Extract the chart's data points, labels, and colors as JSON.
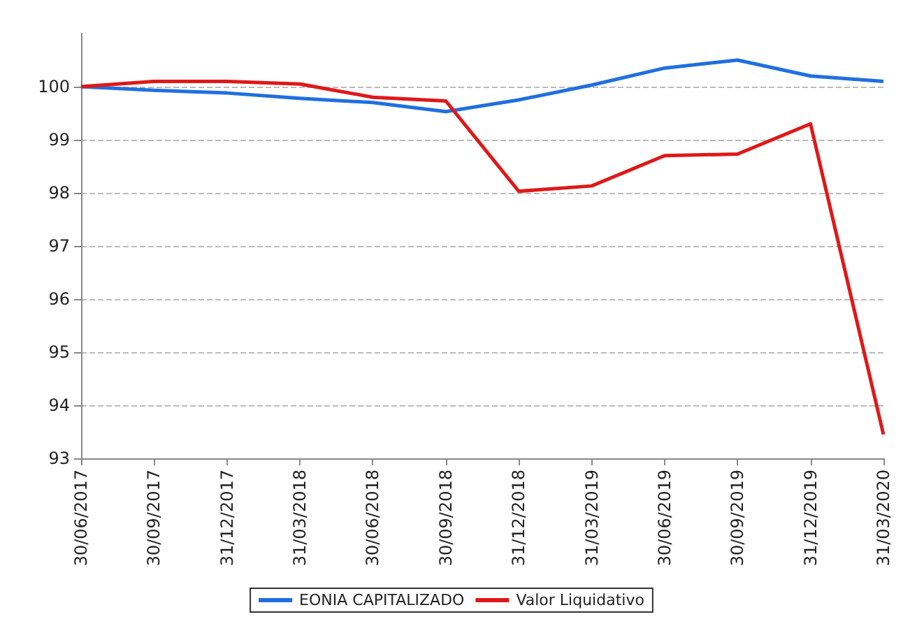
{
  "chart_data": {
    "type": "line",
    "categories": [
      "30/06/2017",
      "30/09/2017",
      "31/12/2017",
      "31/03/2018",
      "30/06/2018",
      "30/09/2018",
      "31/12/2018",
      "31/03/2019",
      "30/06/2019",
      "30/09/2019",
      "31/12/2019",
      "31/03/2020"
    ],
    "series": [
      {
        "name": "EONIA CAPITALIZADO",
        "color": "#1f6fe0",
        "values": [
          100,
          99.93,
          99.88,
          99.78,
          99.7,
          99.53,
          99.75,
          100.03,
          100.35,
          100.5,
          100.2,
          100.1
        ]
      },
      {
        "name": "Valor Liquidativo",
        "color": "#e01818",
        "values": [
          100,
          100.1,
          100.1,
          100.05,
          99.8,
          99.73,
          98.03,
          98.13,
          98.7,
          98.73,
          99.3,
          93.45
        ]
      }
    ],
    "ylim": [
      93,
      101
    ],
    "yticks": [
      93,
      94,
      95,
      96,
      97,
      98,
      99,
      100
    ],
    "grid": "y",
    "legend": "bottom",
    "marker": "none",
    "line_style": "solid"
  }
}
